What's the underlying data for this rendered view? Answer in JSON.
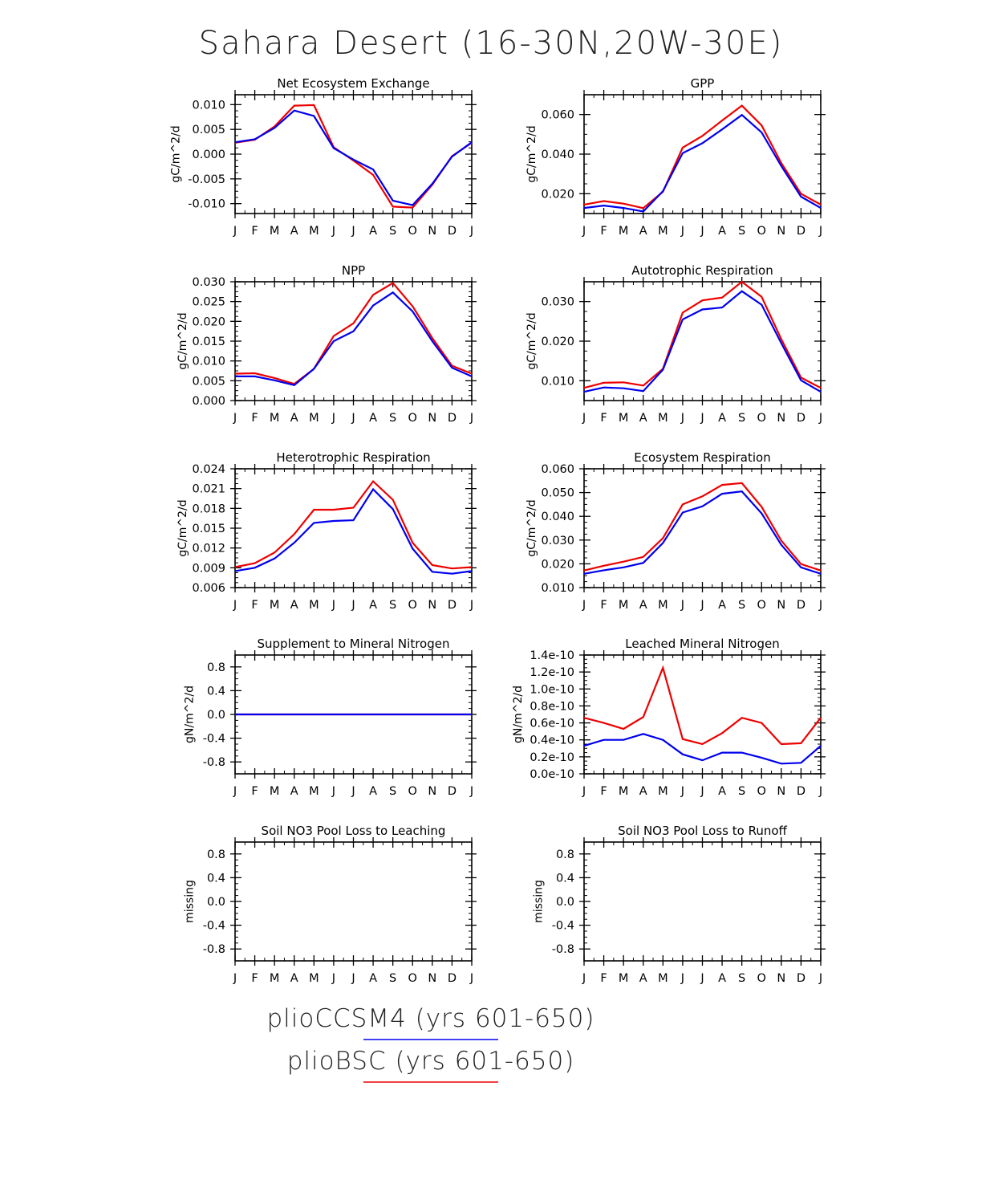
{
  "figure": {
    "title": "Sahara Desert (16-30N,20W-30E)",
    "line_colors": {
      "plioCCSM4": "#0000ee",
      "plioBSC": "#ee0000"
    }
  },
  "legend": [
    {
      "label": "plioCCSM4 (yrs 601-650)",
      "color": "#0000ee"
    },
    {
      "label": "plioBSC (yrs 601-650)",
      "color": "#ee0000"
    }
  ],
  "chart_data": [
    {
      "type": "line",
      "title": "Net Ecosystem Exchange",
      "ylabel": "gC/m^2/d",
      "x": [
        "J",
        "F",
        "M",
        "A",
        "M",
        "J",
        "J",
        "A",
        "S",
        "O",
        "N",
        "D",
        "J"
      ],
      "ylim": [
        -0.012,
        0.012
      ],
      "yticks": [
        -0.01,
        -0.005,
        0.0,
        0.005,
        0.01
      ],
      "ytick_labels": [
        "-0.010",
        "-0.005",
        "0.000",
        "0.005",
        "0.010"
      ],
      "series": [
        {
          "name": "plioBSC",
          "color": "#ee0000",
          "values": [
            0.0023,
            0.0029,
            0.0056,
            0.0098,
            0.0099,
            0.0014,
            -0.0013,
            -0.0042,
            -0.0106,
            -0.0108,
            -0.0062,
            -0.0004,
            0.0023
          ]
        },
        {
          "name": "plioCCSM4",
          "color": "#0000ee",
          "values": [
            0.0024,
            0.003,
            0.0053,
            0.0088,
            0.0077,
            0.0012,
            -0.0011,
            -0.0031,
            -0.0094,
            -0.0103,
            -0.006,
            -0.0005,
            0.0024
          ]
        }
      ]
    },
    {
      "type": "line",
      "title": "GPP",
      "ylabel": "gC/m^2/d",
      "x": [
        "J",
        "F",
        "M",
        "A",
        "M",
        "J",
        "J",
        "A",
        "S",
        "O",
        "N",
        "D",
        "J"
      ],
      "ylim": [
        0.01,
        0.07
      ],
      "yticks": [
        0.02,
        0.04,
        0.06
      ],
      "ytick_labels": [
        "0.020",
        "0.040",
        "0.060"
      ],
      "series": [
        {
          "name": "plioBSC",
          "color": "#ee0000",
          "values": [
            0.0145,
            0.0163,
            0.015,
            0.0127,
            0.021,
            0.0433,
            0.0492,
            0.057,
            0.0645,
            0.0545,
            0.0355,
            0.02,
            0.0145
          ]
        },
        {
          "name": "plioCCSM4",
          "color": "#0000ee",
          "values": [
            0.0128,
            0.014,
            0.0128,
            0.011,
            0.0213,
            0.0405,
            0.0455,
            0.0525,
            0.0598,
            0.051,
            0.034,
            0.0185,
            0.0128
          ]
        }
      ]
    },
    {
      "type": "line",
      "title": "NPP",
      "ylabel": "gC/m^2/d",
      "x": [
        "J",
        "F",
        "M",
        "A",
        "M",
        "J",
        "J",
        "A",
        "S",
        "O",
        "N",
        "D",
        "J"
      ],
      "ylim": [
        0.0,
        0.03
      ],
      "yticks": [
        0.0,
        0.005,
        0.01,
        0.015,
        0.02,
        0.025,
        0.03
      ],
      "ytick_labels": [
        "0.000",
        "0.005",
        "0.010",
        "0.015",
        "0.020",
        "0.025",
        "0.030"
      ],
      "series": [
        {
          "name": "plioBSC",
          "color": "#ee0000",
          "values": [
            0.0068,
            0.0069,
            0.0057,
            0.0042,
            0.008,
            0.0163,
            0.0195,
            0.0267,
            0.0297,
            0.0238,
            0.0158,
            0.0088,
            0.0068
          ]
        },
        {
          "name": "plioCCSM4",
          "color": "#0000ee",
          "values": [
            0.0061,
            0.0061,
            0.0051,
            0.0039,
            0.008,
            0.015,
            0.0175,
            0.024,
            0.0273,
            0.0225,
            0.015,
            0.0083,
            0.0061
          ]
        }
      ]
    },
    {
      "type": "line",
      "title": "Autotrophic Respiration",
      "ylabel": "gC/m^2/d",
      "x": [
        "J",
        "F",
        "M",
        "A",
        "M",
        "J",
        "J",
        "A",
        "S",
        "O",
        "N",
        "D",
        "J"
      ],
      "ylim": [
        0.005,
        0.035
      ],
      "yticks": [
        0.01,
        0.02,
        0.03
      ],
      "ytick_labels": [
        "0.010",
        "0.020",
        "0.030"
      ],
      "series": [
        {
          "name": "plioBSC",
          "color": "#ee0000",
          "values": [
            0.0082,
            0.0095,
            0.0096,
            0.0088,
            0.013,
            0.0272,
            0.0303,
            0.031,
            0.035,
            0.0312,
            0.0205,
            0.0108,
            0.0082
          ]
        },
        {
          "name": "plioCCSM4",
          "color": "#0000ee",
          "values": [
            0.0072,
            0.0083,
            0.0081,
            0.0074,
            0.0128,
            0.0255,
            0.028,
            0.0285,
            0.0326,
            0.0292,
            0.0195,
            0.0101,
            0.0072
          ]
        }
      ]
    },
    {
      "type": "line",
      "title": "Heterotrophic Respiration",
      "ylabel": "gC/m^2/d",
      "x": [
        "J",
        "F",
        "M",
        "A",
        "M",
        "J",
        "J",
        "A",
        "S",
        "O",
        "N",
        "D",
        "J"
      ],
      "ylim": [
        0.006,
        0.024
      ],
      "yticks": [
        0.006,
        0.009,
        0.012,
        0.015,
        0.018,
        0.021,
        0.024
      ],
      "ytick_labels": [
        "0.006",
        "0.009",
        "0.012",
        "0.015",
        "0.018",
        "0.021",
        "0.024"
      ],
      "series": [
        {
          "name": "plioBSC",
          "color": "#ee0000",
          "values": [
            0.0091,
            0.0097,
            0.0113,
            0.0141,
            0.0178,
            0.0178,
            0.0181,
            0.0221,
            0.0193,
            0.0128,
            0.0094,
            0.0089,
            0.0091
          ]
        },
        {
          "name": "plioCCSM4",
          "color": "#0000ee",
          "values": [
            0.0085,
            0.009,
            0.0104,
            0.0128,
            0.0158,
            0.0161,
            0.0162,
            0.0209,
            0.0179,
            0.0119,
            0.0084,
            0.0081,
            0.0085
          ]
        }
      ]
    },
    {
      "type": "line",
      "title": "Ecosystem Respiration",
      "ylabel": "gC/m^2/d",
      "x": [
        "J",
        "F",
        "M",
        "A",
        "M",
        "J",
        "J",
        "A",
        "S",
        "O",
        "N",
        "D",
        "J"
      ],
      "ylim": [
        0.01,
        0.06
      ],
      "yticks": [
        0.01,
        0.02,
        0.03,
        0.04,
        0.05,
        0.06
      ],
      "ytick_labels": [
        "0.010",
        "0.020",
        "0.030",
        "0.040",
        "0.050",
        "0.060"
      ],
      "series": [
        {
          "name": "plioBSC",
          "color": "#ee0000",
          "values": [
            0.0172,
            0.0192,
            0.0209,
            0.0229,
            0.0308,
            0.045,
            0.0484,
            0.0532,
            0.054,
            0.044,
            0.0298,
            0.0199,
            0.0172
          ]
        },
        {
          "name": "plioCCSM4",
          "color": "#0000ee",
          "values": [
            0.0158,
            0.0173,
            0.0185,
            0.0204,
            0.0288,
            0.0416,
            0.0442,
            0.0495,
            0.0505,
            0.0412,
            0.028,
            0.0185,
            0.0158
          ]
        }
      ]
    },
    {
      "type": "line",
      "title": "Supplement to Mineral Nitrogen",
      "ylabel": "gN/m^2/d",
      "x": [
        "J",
        "F",
        "M",
        "A",
        "M",
        "J",
        "J",
        "A",
        "S",
        "O",
        "N",
        "D",
        "J"
      ],
      "ylim": [
        -1.0,
        1.0
      ],
      "yticks": [
        -0.8,
        -0.4,
        0.0,
        0.4,
        0.8
      ],
      "ytick_labels": [
        "-0.8",
        "-0.4",
        "0.0",
        "0.4",
        "0.8"
      ],
      "series": [
        {
          "name": "plioBSC",
          "color": "#ee0000",
          "values": [
            0,
            0,
            0,
            0,
            0,
            0,
            0,
            0,
            0,
            0,
            0,
            0,
            0
          ]
        },
        {
          "name": "plioCCSM4",
          "color": "#0000ee",
          "values": [
            0,
            0,
            0,
            0,
            0,
            0,
            0,
            0,
            0,
            0,
            0,
            0,
            0
          ]
        }
      ]
    },
    {
      "type": "line",
      "title": "Leached Mineral Nitrogen",
      "ylabel": "gN/m^2/d",
      "x": [
        "J",
        "F",
        "M",
        "A",
        "M",
        "J",
        "J",
        "A",
        "S",
        "O",
        "N",
        "D",
        "J"
      ],
      "ylim": [
        0.0,
        1.4e-10
      ],
      "yticks": [
        0.0,
        2e-11,
        4e-11,
        6e-11,
        8e-11,
        1e-10,
        1.2e-10,
        1.4e-10
      ],
      "ytick_labels": [
        "0.0e-10",
        "0.2e-10",
        "0.4e-10",
        "0.6e-10",
        "0.8e-10",
        "1.0e-10",
        "1.2e-10",
        "1.4e-10"
      ],
      "series": [
        {
          "name": "plioBSC",
          "color": "#ee0000",
          "values": [
            6.6e-11,
            6e-11,
            5.3e-11,
            6.7e-11,
            1.25e-10,
            4.1e-11,
            3.5e-11,
            4.8e-11,
            6.6e-11,
            6e-11,
            3.5e-11,
            3.6e-11,
            6.6e-11
          ]
        },
        {
          "name": "plioCCSM4",
          "color": "#0000ee",
          "values": [
            3.3e-11,
            4e-11,
            4e-11,
            4.7e-11,
            4e-11,
            2.3e-11,
            1.6e-11,
            2.5e-11,
            2.5e-11,
            1.9e-11,
            1.2e-11,
            1.3e-11,
            3.3e-11
          ]
        }
      ]
    },
    {
      "type": "line",
      "title": "Soil NO3 Pool Loss to Leaching",
      "ylabel": "missing",
      "x": [
        "J",
        "F",
        "M",
        "A",
        "M",
        "J",
        "J",
        "A",
        "S",
        "O",
        "N",
        "D",
        "J"
      ],
      "ylim": [
        -1.0,
        1.0
      ],
      "yticks": [
        -0.8,
        -0.4,
        0.0,
        0.4,
        0.8
      ],
      "ytick_labels": [
        "-0.8",
        "-0.4",
        "0.0",
        "0.4",
        "0.8"
      ],
      "series": []
    },
    {
      "type": "line",
      "title": "Soil NO3 Pool Loss to Runoff",
      "ylabel": "missing",
      "x": [
        "J",
        "F",
        "M",
        "A",
        "M",
        "J",
        "J",
        "A",
        "S",
        "O",
        "N",
        "D",
        "J"
      ],
      "ylim": [
        -1.0,
        1.0
      ],
      "yticks": [
        -0.8,
        -0.4,
        0.0,
        0.4,
        0.8
      ],
      "ytick_labels": [
        "-0.8",
        "-0.4",
        "0.0",
        "0.4",
        "0.8"
      ],
      "series": []
    }
  ]
}
